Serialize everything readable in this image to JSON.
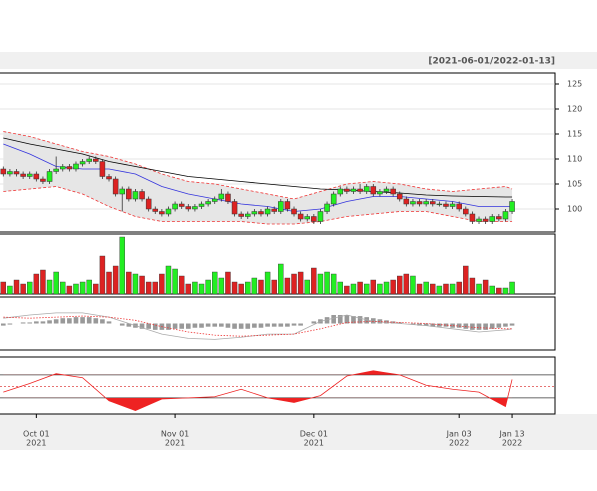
{
  "chart_data": {
    "type": "candlestick",
    "title": "[2021-06-01/2022-01-13]",
    "categories": [
      null,
      null,
      null,
      null,
      null,
      "Oct 01",
      null,
      null,
      null,
      null,
      null,
      null,
      null,
      null,
      null,
      null,
      null,
      null,
      null,
      null,
      null,
      null,
      null,
      null,
      null,
      null,
      "Nov 01",
      null,
      null,
      null,
      null,
      null,
      null,
      null,
      null,
      null,
      null,
      null,
      null,
      null,
      null,
      null,
      null,
      null,
      null,
      null,
      null,
      "Dec 01",
      null,
      null,
      null,
      null,
      null,
      null,
      null,
      null,
      null,
      null,
      null,
      null,
      null,
      null,
      null,
      null,
      null,
      null,
      null,
      null,
      null,
      "Jan 03",
      null,
      null,
      null,
      null,
      null,
      null,
      null,
      "Jan 13"
    ],
    "category_years": [
      null,
      null,
      null,
      null,
      null,
      "2021",
      null,
      null,
      null,
      null,
      null,
      null,
      null,
      null,
      null,
      null,
      null,
      null,
      null,
      null,
      null,
      null,
      null,
      null,
      null,
      null,
      "2021",
      null,
      null,
      null,
      null,
      null,
      null,
      null,
      null,
      null,
      null,
      null,
      null,
      null,
      null,
      null,
      null,
      null,
      null,
      null,
      null,
      "2021",
      null,
      null,
      null,
      null,
      null,
      null,
      null,
      null,
      null,
      null,
      null,
      null,
      null,
      null,
      null,
      null,
      null,
      null,
      null,
      null,
      null,
      "2022",
      null,
      null,
      null,
      null,
      null,
      null,
      null,
      "2022"
    ],
    "xlim": [
      -0.5,
      83.5
    ],
    "ylim": [
      95.4,
      127.2
    ],
    "yticks": [
      100,
      105,
      110,
      115,
      120,
      125
    ],
    "up_color": "#22ee22",
    "down_color": "#dd2222",
    "candles": [
      [
        108,
        108.5,
        106.5,
        107
      ],
      [
        107,
        108,
        106.5,
        107.5
      ],
      [
        107.5,
        108,
        106.5,
        107
      ],
      [
        107,
        107.5,
        106,
        106.5
      ],
      [
        106.5,
        107.5,
        106,
        107
      ],
      [
        107,
        107.5,
        105.5,
        106
      ],
      [
        106,
        106.5,
        105,
        105.5
      ],
      [
        105.5,
        108,
        105,
        107.5
      ],
      [
        107.5,
        110.5,
        107,
        108
      ],
      [
        108,
        109,
        107.5,
        108.5
      ],
      [
        108.5,
        109,
        107.5,
        108
      ],
      [
        108,
        109.5,
        107.5,
        109
      ],
      [
        109,
        110,
        108.5,
        109.5
      ],
      [
        109.5,
        110.5,
        109,
        110
      ],
      [
        110,
        110.5,
        109,
        109.5
      ],
      [
        109.5,
        110,
        106,
        106.5
      ],
      [
        106.5,
        107,
        105.5,
        106
      ],
      [
        106,
        106.5,
        102.5,
        103
      ],
      [
        103,
        104.5,
        99.5,
        104
      ],
      [
        104,
        104.5,
        101.5,
        102
      ],
      [
        102,
        104,
        101.5,
        103.5
      ],
      [
        103.5,
        104,
        101.5,
        102
      ],
      [
        102,
        102.5,
        99.5,
        100
      ],
      [
        100,
        100.5,
        99,
        99.5
      ],
      [
        99.5,
        100,
        98.5,
        99
      ],
      [
        99,
        100.5,
        98.5,
        100
      ],
      [
        100,
        101.5,
        99.5,
        101
      ],
      [
        101,
        101.5,
        100,
        100.5
      ],
      [
        100.5,
        101,
        99.5,
        100
      ],
      [
        100,
        101,
        99.5,
        100.5
      ],
      [
        100.5,
        101.5,
        100,
        101
      ],
      [
        101,
        102,
        100.5,
        101.5
      ],
      [
        101.5,
        102.5,
        101,
        102
      ],
      [
        102,
        104,
        101.5,
        103
      ],
      [
        103,
        103.5,
        101,
        101.5
      ],
      [
        101.5,
        102,
        98.5,
        99
      ],
      [
        99,
        99.5,
        98,
        98.5
      ],
      [
        98.5,
        99.5,
        98,
        99
      ],
      [
        99,
        100,
        98.5,
        99.5
      ],
      [
        99.5,
        100,
        98.5,
        99
      ],
      [
        99,
        100.5,
        98.5,
        100
      ],
      [
        100,
        100.5,
        99,
        99.5
      ],
      [
        99.5,
        102,
        99,
        101.5
      ],
      [
        101.5,
        102,
        99.5,
        100
      ],
      [
        100,
        100.5,
        98.5,
        99
      ],
      [
        99,
        99.5,
        97.5,
        98
      ],
      [
        98,
        99,
        97.5,
        98.5
      ],
      [
        98.5,
        99,
        97,
        97.5
      ],
      [
        97.5,
        100,
        97,
        99.5
      ],
      [
        99.5,
        101.5,
        99,
        101
      ],
      [
        101,
        103.5,
        100.5,
        103
      ],
      [
        103,
        104.5,
        102.5,
        104
      ],
      [
        104,
        104.5,
        103,
        103.5
      ],
      [
        103.5,
        104.5,
        103,
        104
      ],
      [
        104,
        105,
        103,
        103.5
      ],
      [
        103.5,
        105,
        103,
        104.5
      ],
      [
        104.5,
        105,
        102.5,
        103
      ],
      [
        103,
        104,
        102.5,
        103.5
      ],
      [
        103.5,
        104.5,
        103,
        104
      ],
      [
        104,
        104.5,
        102.5,
        103
      ],
      [
        103,
        103.5,
        101.5,
        102
      ],
      [
        102,
        102.5,
        100.5,
        101
      ],
      [
        101,
        102,
        100.5,
        101.5
      ],
      [
        101.5,
        102,
        100.5,
        101
      ],
      [
        101,
        102,
        100.5,
        101.5
      ],
      [
        101.5,
        102,
        100.5,
        101
      ],
      [
        101,
        101.5,
        100.5,
        101
      ],
      [
        101,
        101.5,
        100,
        100.5
      ],
      [
        100.5,
        101.5,
        100,
        101
      ],
      [
        101,
        101.5,
        99.5,
        100
      ],
      [
        100,
        100.5,
        98.5,
        99
      ],
      [
        99,
        99.5,
        97,
        97.5
      ],
      [
        97.5,
        98.5,
        97,
        98
      ],
      [
        98,
        98.5,
        97,
        97.5
      ],
      [
        97.5,
        99,
        97,
        98.5
      ],
      [
        98.5,
        99,
        97.5,
        98
      ],
      [
        98,
        100,
        97.5,
        99.5
      ],
      [
        99.5,
        102,
        99,
        101.5
      ]
    ],
    "line_x": [
      0,
      4,
      8,
      12,
      16,
      20,
      24,
      28,
      32,
      36,
      40,
      44,
      48,
      52,
      56,
      60,
      64,
      68,
      72,
      76,
      77
    ],
    "bands": {
      "color": "#ee3333",
      "fill": "#e6e6e6",
      "upper": [
        115.5,
        114.5,
        113,
        111.5,
        110.5,
        109,
        107,
        105.5,
        105,
        104,
        103,
        102,
        103.5,
        105,
        105.5,
        105,
        104,
        103.5,
        104,
        104.5,
        104
      ],
      "lower": [
        103.5,
        104,
        104.5,
        103,
        100.5,
        98.5,
        97.5,
        97.5,
        97.5,
        97.5,
        97,
        97,
        97.5,
        98.5,
        99,
        99.5,
        99.5,
        98.5,
        97.5,
        97.5,
        97.5
      ]
    },
    "lines": [
      {
        "color": "#3333dd",
        "values": [
          113,
          111,
          108.5,
          108,
          108,
          107,
          104.5,
          103,
          102,
          101,
          100.5,
          99.5,
          100,
          101.5,
          102.5,
          102.5,
          102,
          101.5,
          100.5,
          100.5,
          100.5
        ]
      },
      {
        "color": "#000000",
        "values": [
          114.2,
          113,
          112,
          111,
          109.5,
          108.5,
          107.5,
          106.5,
          106,
          105.5,
          105,
          104.5,
          104,
          103.8,
          103.5,
          103.2,
          102.8,
          102.6,
          102.5,
          102.4,
          102.4
        ]
      }
    ],
    "volume": {
      "ylim": [
        0,
        60
      ],
      "values": [
        12,
        8,
        14,
        10,
        12,
        20,
        24,
        14,
        22,
        12,
        8,
        10,
        12,
        14,
        10,
        38,
        22,
        28,
        57,
        22,
        20,
        18,
        12,
        12,
        20,
        28,
        25,
        18,
        10,
        12,
        10,
        14,
        22,
        16,
        22,
        12,
        10,
        12,
        16,
        14,
        22,
        14,
        30,
        16,
        20,
        22,
        14,
        26,
        20,
        22,
        20,
        12,
        8,
        10,
        12,
        10,
        14,
        10,
        12,
        14,
        18,
        20,
        18,
        10,
        12,
        10,
        8,
        10,
        10,
        12,
        28,
        16,
        10,
        14,
        8,
        6,
        6,
        12
      ]
    },
    "macd": {
      "ylim": [
        -2.5,
        2.5
      ],
      "hist_color": "#999999",
      "macd_color": "#aaaaaa",
      "signal_color": "#ee3333",
      "histogram": [
        -0.2,
        -0.1,
        0,
        0.1,
        0.1,
        0.2,
        0.2,
        0.3,
        0.4,
        0.5,
        0.5,
        0.6,
        0.6,
        0.6,
        0.5,
        0.4,
        0.2,
        0,
        -0.2,
        -0.3,
        -0.4,
        -0.5,
        -0.5,
        -0.6,
        -0.6,
        -0.6,
        -0.5,
        -0.5,
        -0.5,
        -0.4,
        -0.4,
        -0.3,
        -0.3,
        -0.3,
        -0.4,
        -0.5,
        -0.5,
        -0.5,
        -0.4,
        -0.4,
        -0.3,
        -0.3,
        -0.3,
        -0.3,
        -0.2,
        -0.2,
        0,
        0.2,
        0.4,
        0.6,
        0.8,
        0.8,
        0.8,
        0.7,
        0.7,
        0.6,
        0.5,
        0.4,
        0.3,
        0.2,
        0.1,
        0,
        -0.1,
        -0.2,
        -0.2,
        -0.3,
        -0.3,
        -0.3,
        -0.4,
        -0.4,
        -0.5,
        -0.6,
        -0.6,
        -0.6,
        -0.5,
        -0.4,
        -0.3,
        -0.2
      ],
      "macd": [
        0.5,
        0.8,
        1.0,
        1.0,
        0.6,
        -0.2,
        -1.0,
        -1.4,
        -1.5,
        -1.3,
        -1.0,
        -1.0,
        0.2,
        0.8,
        0.2,
        0,
        -0.2,
        -0.5,
        -0.8,
        -0.6,
        -0.5
      ],
      "signal": [
        0.6,
        0.5,
        0.6,
        0.7,
        0.6,
        0.3,
        -0.3,
        -0.8,
        -1.1,
        -1.2,
        -1.1,
        -1.0,
        -0.5,
        0.1,
        0.2,
        0.1,
        0,
        -0.2,
        -0.4,
        -0.5,
        -0.5
      ]
    },
    "oscillator": {
      "ylim": [
        2,
        101
      ],
      "yticks": [
        30,
        50,
        70
      ],
      "color": "#ee2222",
      "values": [
        40,
        55,
        72,
        65,
        25,
        8,
        28,
        30,
        32,
        45,
        30,
        22,
        34,
        68,
        77,
        70,
        52,
        45,
        40,
        15,
        62
      ]
    }
  }
}
